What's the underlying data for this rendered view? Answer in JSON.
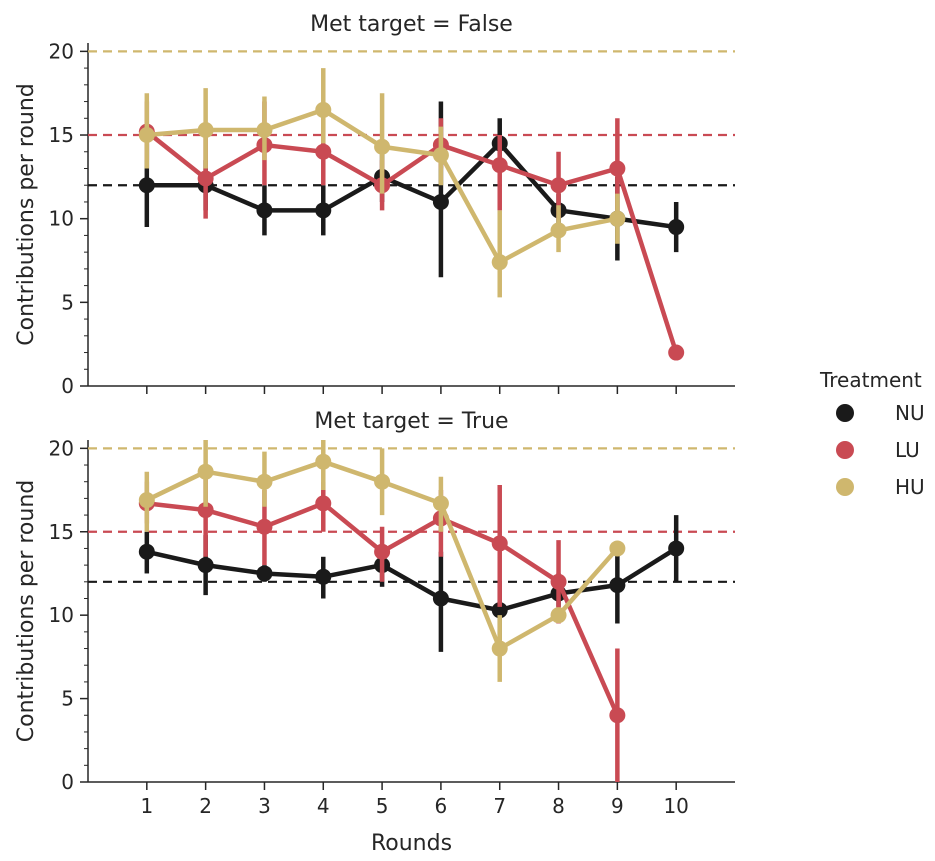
{
  "chart_data": {
    "type": "line",
    "xlabel": "Rounds",
    "ylabel": "Contributions per round",
    "x": [
      1,
      2,
      3,
      4,
      5,
      6,
      7,
      8,
      9,
      10
    ],
    "ylim": [
      0,
      20.5
    ],
    "yticks": [
      0,
      5,
      10,
      15,
      20
    ],
    "grid": false,
    "legend": {
      "title": "Treatment",
      "placement": "right",
      "entries": [
        {
          "label": "NU",
          "color": "#1a1a1a"
        },
        {
          "label": "LU",
          "color": "#c94a53"
        },
        {
          "label": "HU",
          "color": "#cfb76e"
        }
      ]
    },
    "panels": [
      {
        "title": "Met target = False",
        "reference_lines": [
          {
            "series": "NU",
            "y": 12
          },
          {
            "series": "LU",
            "y": 15
          },
          {
            "series": "HU",
            "y": 20
          }
        ],
        "series": [
          {
            "name": "NU",
            "color": "#1a1a1a",
            "x": [
              1,
              2,
              3,
              4,
              5,
              6,
              7,
              8,
              9,
              10
            ],
            "values": [
              12,
              12,
              10.5,
              10.5,
              12.5,
              11,
              14.5,
              10.5,
              10,
              9.5
            ],
            "ci_low": [
              9.5,
              10.5,
              9,
              9,
              11,
              6.5,
              13,
              9.5,
              7.5,
              8
            ],
            "ci_high": [
              14.5,
              13.5,
              12,
              12,
              14,
              17,
              16,
              11.5,
              12.5,
              11
            ]
          },
          {
            "name": "LU",
            "color": "#c94a53",
            "x": [
              1,
              2,
              3,
              4,
              5,
              6,
              7,
              8,
              9,
              10
            ],
            "values": [
              15.2,
              12.4,
              14.4,
              14,
              12,
              14.4,
              13.2,
              12,
              13,
              2
            ],
            "ci_low": [
              13.5,
              10,
              12,
              12,
              10.5,
              13,
              10.5,
              10,
              10,
              2
            ],
            "ci_high": [
              17,
              15,
              17,
              16,
              13.5,
              16,
              15,
              14,
              16,
              2
            ]
          },
          {
            "name": "HU",
            "color": "#cfb76e",
            "x": [
              1,
              2,
              3,
              4,
              5,
              6,
              7,
              8,
              9
            ],
            "values": [
              15,
              15.3,
              15.3,
              16.5,
              14.3,
              13.8,
              7.4,
              9.3,
              10
            ],
            "ci_low": [
              13,
              13,
              13.5,
              14.5,
              11.5,
              12,
              5.3,
              8,
              8.5
            ],
            "ci_high": [
              17.5,
              17.8,
              17.3,
              19,
              17.5,
              15.5,
              10.5,
              10.8,
              11.5
            ]
          }
        ]
      },
      {
        "title": "Met target = True",
        "reference_lines": [
          {
            "series": "NU",
            "y": 12
          },
          {
            "series": "LU",
            "y": 15
          },
          {
            "series": "HU",
            "y": 20
          }
        ],
        "series": [
          {
            "name": "NU",
            "color": "#1a1a1a",
            "x": [
              1,
              2,
              3,
              4,
              5,
              6,
              7,
              8,
              9,
              10
            ],
            "values": [
              13.8,
              13,
              12.5,
              12.3,
              13,
              11,
              10.3,
              11.3,
              11.8,
              14
            ],
            "ci_low": [
              12.5,
              11.2,
              12,
              11,
              11.7,
              7.8,
              8.5,
              10.5,
              9.5,
              12
            ],
            "ci_high": [
              15,
              14.8,
              13,
              13.5,
              14,
              13.8,
              12,
              12.5,
              14,
              16
            ]
          },
          {
            "name": "LU",
            "color": "#c94a53",
            "x": [
              1,
              2,
              3,
              4,
              5,
              6,
              7,
              8,
              9
            ],
            "values": [
              16.7,
              16.3,
              15.3,
              16.7,
              13.8,
              15.8,
              14.3,
              12,
              4
            ],
            "ci_low": [
              15.5,
              13.5,
              13,
              15,
              12,
              13.5,
              10.5,
              9.5,
              0
            ],
            "ci_high": [
              18,
              18.5,
              17.5,
              18,
              15.3,
              17.5,
              17.8,
              14.5,
              8
            ]
          },
          {
            "name": "HU",
            "color": "#cfb76e",
            "x": [
              1,
              2,
              3,
              4,
              5,
              6,
              7,
              8,
              9
            ],
            "values": [
              16.9,
              18.6,
              18,
              19.2,
              18,
              16.7,
              8,
              10,
              14
            ],
            "ci_low": [
              15,
              16.5,
              16.5,
              17.5,
              16,
              15,
              6,
              10,
              14
            ],
            "ci_high": [
              18.6,
              20.5,
              19.8,
              20.5,
              20,
              18.3,
              10,
              10,
              14
            ]
          }
        ]
      }
    ]
  }
}
